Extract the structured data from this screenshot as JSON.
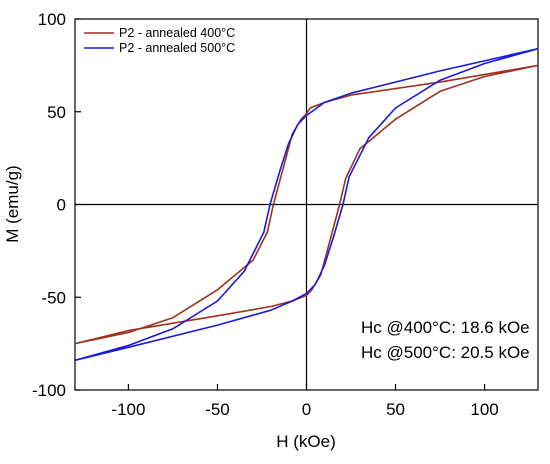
{
  "chart_data": {
    "type": "line",
    "title": "",
    "xlabel": "H (kOe)",
    "ylabel": "M (emu/g)",
    "xlim": [
      -130,
      130
    ],
    "ylim": [
      -100,
      100
    ],
    "x_ticks": [
      -100,
      -50,
      0,
      50,
      100
    ],
    "y_ticks": [
      -100,
      -50,
      0,
      50,
      100
    ],
    "x_tick_labels": [
      "-100",
      "-50",
      "0",
      "50",
      "100"
    ],
    "y_tick_labels": [
      "-100",
      "-50",
      "0",
      "50",
      "100"
    ],
    "zero_lines": true,
    "grid": false,
    "legend_position": "top-left",
    "series": [
      {
        "name": "P2 - annealed 400°C",
        "color": "#a0321e",
        "points": [
          [
            130,
            75
          ],
          [
            75,
            66
          ],
          [
            25,
            59
          ],
          [
            10,
            55
          ],
          [
            2,
            52
          ],
          [
            0,
            49
          ],
          [
            -3,
            46
          ],
          [
            -8,
            38
          ],
          [
            -13,
            20
          ],
          [
            -18.6,
            0
          ],
          [
            -22,
            -15
          ],
          [
            -30,
            -30
          ],
          [
            -50,
            -46
          ],
          [
            -75,
            -61
          ],
          [
            -100,
            -69
          ],
          [
            -130,
            -75
          ],
          [
            -100,
            -68
          ],
          [
            -50,
            -60
          ],
          [
            -20,
            -55
          ],
          [
            -8,
            -52
          ],
          [
            0,
            -49
          ],
          [
            3,
            -46
          ],
          [
            8,
            -38
          ],
          [
            13,
            -20
          ],
          [
            18.6,
            0
          ],
          [
            22,
            14
          ],
          [
            30,
            30
          ],
          [
            50,
            46
          ],
          [
            75,
            61
          ],
          [
            100,
            69
          ],
          [
            130,
            75
          ]
        ]
      },
      {
        "name": "P2 - annealed 500°C",
        "color": "#1a1adb",
        "points": [
          [
            130,
            84
          ],
          [
            75,
            72
          ],
          [
            25,
            60
          ],
          [
            10,
            55
          ],
          [
            0,
            48
          ],
          [
            -5,
            43
          ],
          [
            -10,
            33
          ],
          [
            -15,
            18
          ],
          [
            -20.5,
            0
          ],
          [
            -24,
            -15
          ],
          [
            -35,
            -36
          ],
          [
            -50,
            -52
          ],
          [
            -75,
            -67
          ],
          [
            -100,
            -76
          ],
          [
            -130,
            -84
          ],
          [
            -100,
            -77
          ],
          [
            -50,
            -65
          ],
          [
            -20,
            -57
          ],
          [
            -8,
            -52
          ],
          [
            0,
            -48
          ],
          [
            5,
            -43
          ],
          [
            10,
            -33
          ],
          [
            15,
            -18
          ],
          [
            20.5,
            0
          ],
          [
            24,
            15
          ],
          [
            35,
            36
          ],
          [
            50,
            52
          ],
          [
            75,
            67
          ],
          [
            100,
            76
          ],
          [
            130,
            84
          ]
        ]
      }
    ],
    "annotations": [
      "Hc @400°C: 18.6 kOe",
      "Hc @500°C: 20.5 kOe"
    ]
  }
}
